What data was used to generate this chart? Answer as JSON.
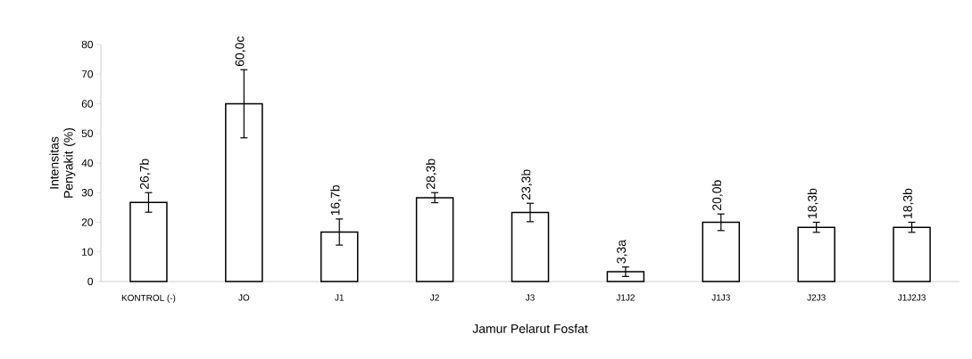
{
  "chart_data": {
    "type": "bar",
    "xlabel": "Jamur Pelarut Fosfat",
    "ylabel": "Intensitas Penyakit (%)",
    "categories": [
      "KONTROL (-)",
      "JO",
      "J1",
      "J2",
      "J3",
      "J1J2",
      "J1J3",
      "J2J3",
      "J1J2J3"
    ],
    "values": [
      26.7,
      60.0,
      16.7,
      28.3,
      23.3,
      3.3,
      20.0,
      18.3,
      18.3
    ],
    "errors": [
      3.3,
      11.5,
      4.4,
      1.7,
      3.1,
      1.6,
      2.8,
      1.7,
      1.7
    ],
    "value_labels": [
      "26,7b",
      "60,0c",
      "16,7b",
      "28,3b",
      "23,3b",
      "3,3a",
      "20,0b",
      "18,3b",
      "18,3b"
    ],
    "color": "#ffffff",
    "ylim": [
      0,
      80
    ],
    "yticks": [
      0,
      10,
      20,
      30,
      40,
      50,
      60,
      70,
      80
    ],
    "grid": false
  }
}
